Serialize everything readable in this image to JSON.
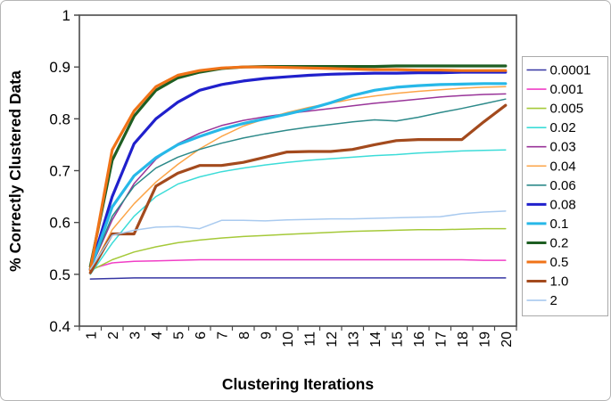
{
  "chart_data": {
    "type": "line",
    "title": "",
    "xlabel": "Clustering Iterations",
    "ylabel": "% Correctly Clustered Data",
    "x": [
      1,
      2,
      3,
      4,
      5,
      6,
      7,
      8,
      9,
      10,
      11,
      12,
      13,
      14,
      15,
      16,
      17,
      18,
      19,
      20
    ],
    "ylim": [
      0.4,
      1.0
    ],
    "yticks": [
      1,
      0.9,
      0.8,
      0.7,
      0.6,
      0.5,
      0.4
    ],
    "ytick_labels": [
      "1",
      "0.9",
      "0.8",
      "0.7",
      "0.6",
      "0.5",
      "0.4"
    ],
    "grid": false,
    "legend_position": "right",
    "plot_border_color": "#4a4a4a",
    "legend_border_color": "#aaaaaa",
    "series": [
      {
        "name": "0.0001",
        "color": "#3636a3",
        "thick": false,
        "values": [
          0.491,
          0.492,
          0.493,
          0.493,
          0.493,
          0.493,
          0.493,
          0.493,
          0.493,
          0.493,
          0.493,
          0.493,
          0.493,
          0.493,
          0.493,
          0.493,
          0.493,
          0.493,
          0.493,
          0.493
        ]
      },
      {
        "name": "0.001",
        "color": "#f13ec6",
        "thick": false,
        "values": [
          0.51,
          0.522,
          0.525,
          0.526,
          0.527,
          0.528,
          0.528,
          0.528,
          0.528,
          0.528,
          0.528,
          0.528,
          0.528,
          0.528,
          0.528,
          0.528,
          0.528,
          0.528,
          0.527,
          0.527
        ]
      },
      {
        "name": "0.005",
        "color": "#a5c939",
        "thick": false,
        "values": [
          0.507,
          0.528,
          0.543,
          0.553,
          0.561,
          0.566,
          0.57,
          0.573,
          0.575,
          0.577,
          0.579,
          0.581,
          0.583,
          0.584,
          0.585,
          0.586,
          0.586,
          0.587,
          0.588,
          0.588
        ]
      },
      {
        "name": "0.02",
        "color": "#3cdcd8",
        "thick": false,
        "values": [
          0.5,
          0.56,
          0.612,
          0.65,
          0.674,
          0.688,
          0.698,
          0.705,
          0.711,
          0.716,
          0.72,
          0.723,
          0.726,
          0.729,
          0.731,
          0.734,
          0.736,
          0.738,
          0.739,
          0.74
        ]
      },
      {
        "name": "0.03",
        "color": "#993499",
        "thick": false,
        "values": [
          0.51,
          0.605,
          0.675,
          0.722,
          0.752,
          0.772,
          0.787,
          0.797,
          0.804,
          0.81,
          0.815,
          0.82,
          0.825,
          0.83,
          0.834,
          0.838,
          0.842,
          0.845,
          0.847,
          0.848
        ]
      },
      {
        "name": "0.04",
        "color": "#fca548",
        "thick": false,
        "values": [
          0.505,
          0.586,
          0.636,
          0.678,
          0.712,
          0.742,
          0.766,
          0.786,
          0.8,
          0.812,
          0.822,
          0.83,
          0.838,
          0.844,
          0.849,
          0.853,
          0.856,
          0.859,
          0.861,
          0.862
        ]
      },
      {
        "name": "0.06",
        "color": "#2d8a8a",
        "thick": false,
        "values": [
          0.51,
          0.612,
          0.67,
          0.705,
          0.726,
          0.741,
          0.753,
          0.763,
          0.771,
          0.778,
          0.784,
          0.789,
          0.794,
          0.798,
          0.796,
          0.803,
          0.812,
          0.82,
          0.829,
          0.838
        ]
      },
      {
        "name": "0.08",
        "color": "#2020cc",
        "thick": true,
        "values": [
          0.51,
          0.65,
          0.752,
          0.8,
          0.832,
          0.855,
          0.866,
          0.873,
          0.878,
          0.881,
          0.884,
          0.886,
          0.887,
          0.888,
          0.888,
          0.889,
          0.889,
          0.89,
          0.89,
          0.89
        ]
      },
      {
        "name": "0.1",
        "color": "#27b8e8",
        "thick": true,
        "values": [
          0.51,
          0.63,
          0.69,
          0.725,
          0.75,
          0.766,
          0.78,
          0.791,
          0.8,
          0.809,
          0.819,
          0.831,
          0.845,
          0.855,
          0.861,
          0.864,
          0.866,
          0.867,
          0.868,
          0.868
        ]
      },
      {
        "name": "0.2",
        "color": "#1e5e22",
        "thick": true,
        "values": [
          0.515,
          0.72,
          0.805,
          0.855,
          0.879,
          0.89,
          0.897,
          0.9,
          0.901,
          0.901,
          0.901,
          0.901,
          0.901,
          0.901,
          0.902,
          0.902,
          0.902,
          0.902,
          0.902,
          0.902
        ]
      },
      {
        "name": "0.5",
        "color": "#f07318",
        "thick": true,
        "values": [
          0.508,
          0.74,
          0.815,
          0.862,
          0.884,
          0.893,
          0.898,
          0.9,
          0.9,
          0.899,
          0.898,
          0.897,
          0.896,
          0.895,
          0.895,
          0.894,
          0.894,
          0.893,
          0.893,
          0.893
        ]
      },
      {
        "name": "1.0",
        "color": "#a34a1d",
        "thick": true,
        "values": [
          0.503,
          0.578,
          0.578,
          0.67,
          0.695,
          0.71,
          0.71,
          0.716,
          0.726,
          0.736,
          0.737,
          0.737,
          0.741,
          0.75,
          0.758,
          0.76,
          0.76,
          0.76,
          0.794,
          0.826
        ]
      },
      {
        "name": "2",
        "color": "#a9caef",
        "thick": false,
        "values": [
          0.51,
          0.575,
          0.585,
          0.591,
          0.592,
          0.588,
          0.604,
          0.604,
          0.603,
          0.605,
          0.606,
          0.607,
          0.607,
          0.608,
          0.609,
          0.61,
          0.611,
          0.617,
          0.62,
          0.622
        ]
      }
    ]
  }
}
